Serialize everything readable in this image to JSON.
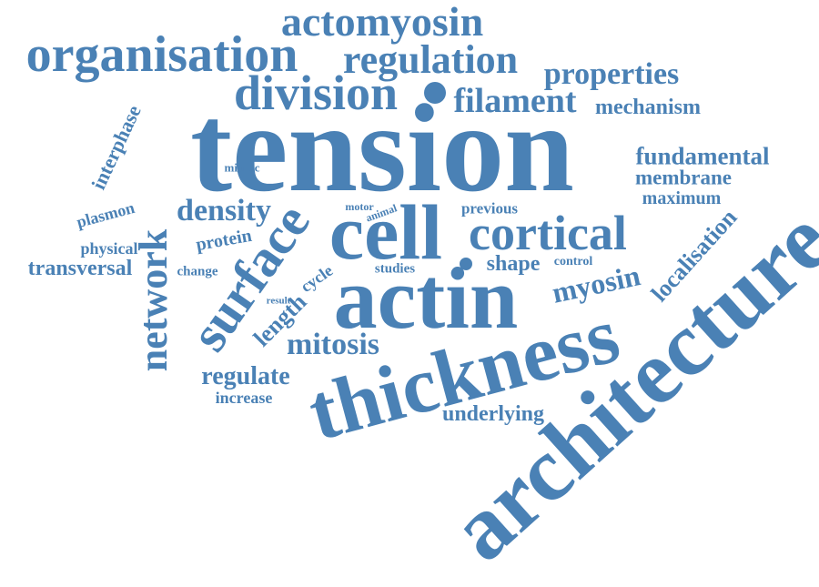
{
  "color": "#4a81b5",
  "words": {
    "tension": "tension",
    "thickness": "thickness",
    "architecture": "architecture",
    "actin": "actin",
    "cell": "cell",
    "surface": "surface",
    "division": "division",
    "organisation": "organisation",
    "actomyosin": "actomyosin",
    "regulation": "regulation",
    "network": "network",
    "cortical": "cortical",
    "filament": "filament",
    "properties": "properties",
    "mechanism": "mechanism",
    "myosin": "myosin",
    "mitosis": "mitosis",
    "density": "density",
    "fundamental": "fundamental",
    "membrane": "membrane",
    "maximum": "maximum",
    "localisation": "localisation",
    "shape": "shape",
    "regulate": "regulate",
    "length": "length",
    "transversal": "transversal",
    "protein": "protein",
    "underlying": "underlying",
    "interphase": "interphase",
    "plasmon": "plasmon",
    "previous": "previous",
    "cycle": "cycle",
    "increase": "increase",
    "physical": "physical",
    "change": "change",
    "studies": "studies",
    "control": "control",
    "mitotic": "mitotic",
    "motor": "motor",
    "animal": "animal",
    "result": "result"
  }
}
